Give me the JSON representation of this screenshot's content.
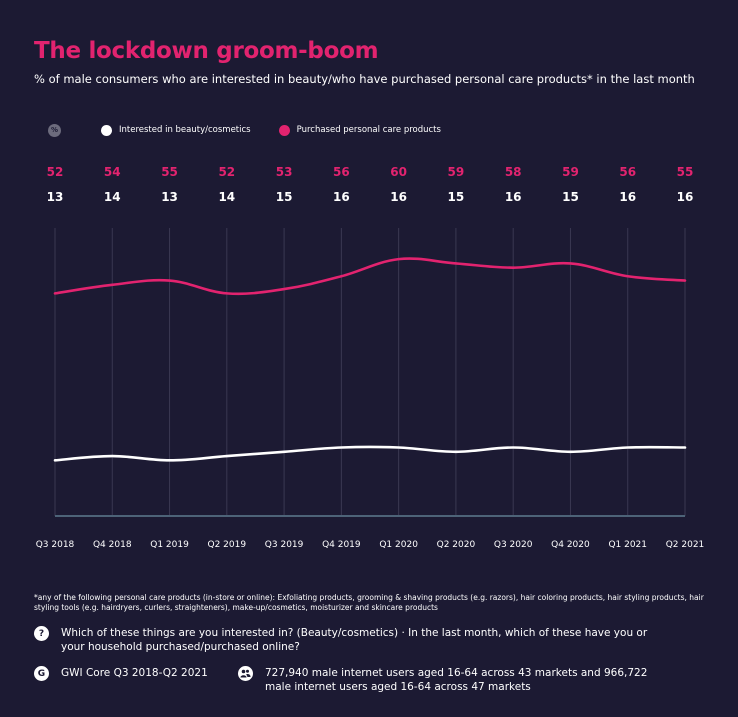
{
  "title": "The lockdown groom-boom",
  "subtitle": "% of male consumers who are interested in beauty/who have purchased personal care products* in the last month",
  "legend": {
    "percent_icon": "%",
    "items": [
      {
        "label": "Interested in beauty/cosmetics",
        "color": "#ffffff"
      },
      {
        "label": "Purchased personal care products",
        "color": "#e2236f"
      }
    ]
  },
  "chart_data": {
    "type": "line",
    "categories": [
      "Q3 2018",
      "Q4 2018",
      "Q1 2019",
      "Q2 2019",
      "Q3 2019",
      "Q4 2019",
      "Q1 2020",
      "Q2 2020",
      "Q3 2020",
      "Q4 2020",
      "Q1 2021",
      "Q2 2021"
    ],
    "series": [
      {
        "name": "Purchased personal care products",
        "color": "#e2236f",
        "values": [
          52,
          54,
          55,
          52,
          53,
          56,
          60,
          59,
          58,
          59,
          56,
          55
        ]
      },
      {
        "name": "Interested in beauty/cosmetics",
        "color": "#ffffff",
        "values": [
          13,
          14,
          13,
          14,
          15,
          16,
          16,
          15,
          16,
          15,
          16,
          16
        ]
      }
    ],
    "grid": true
  },
  "footnote": "*any of the following personal care products (in-store or online): Exfoliating products, grooming & shaving products (e.g. razors), hair coloring products, hair styling products, hair styling tools (e.g. hairdryers, curlers, straighteners), make-up/cosmetics, moisturizer and skincare products",
  "question": {
    "icon": "?",
    "text": "Which of these things are you interested in? (Beauty/cosmetics) · In the last month, which of these have you or your household purchased/purchased online?"
  },
  "source": {
    "icon": "G",
    "text": "GWI Core Q3 2018-Q2 2021"
  },
  "base": {
    "icon": "users-icon",
    "text": "727,940 male internet users aged 16-64 across 43 markets and 966,722 male internet users aged 16-64 across 47 markets"
  }
}
